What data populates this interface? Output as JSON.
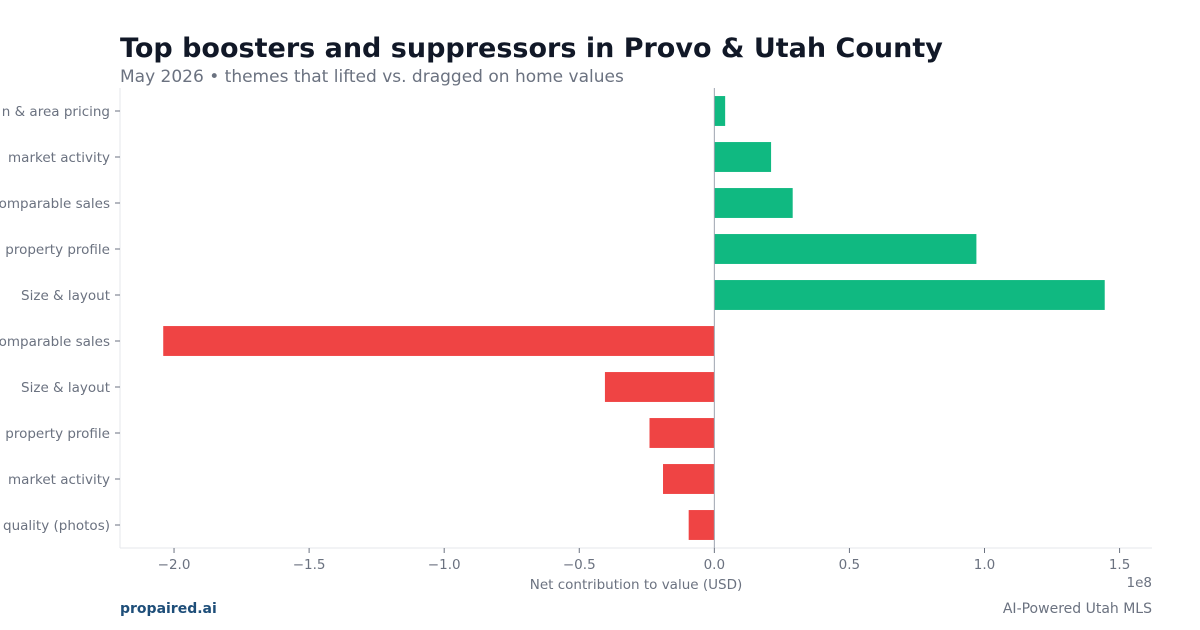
{
  "header": {
    "title": "Top boosters and suppressors in Provo & Utah County",
    "subtitle": "May 2026 • themes that lifted vs. dragged on home values"
  },
  "footer": {
    "brand": "propaired.ai",
    "tagline": "AI-Powered Utah MLS"
  },
  "colors": {
    "booster": "#10b981",
    "suppressor": "#ef4444",
    "text": "#6b7280",
    "title": "#111827",
    "brand": "#1e4e79"
  },
  "chart_data": {
    "type": "bar",
    "orientation": "horizontal",
    "title": "Top boosters and suppressors in Provo & Utah County",
    "subtitle": "May 2026 • themes that lifted vs. dragged on home values",
    "xlabel": "Net contribution to value (USD)",
    "x_offset_label": "1e8",
    "xlim": [
      -2.2,
      1.62
    ],
    "xticks": [
      -2.0,
      -1.5,
      -1.0,
      -0.5,
      0.0,
      0.5,
      1.0,
      1.5
    ],
    "xtick_labels": [
      "−2.0",
      "−1.5",
      "−1.0",
      "−0.5",
      "0.0",
      "0.5",
      "1.0",
      "1.5"
    ],
    "grid": false,
    "categories": [
      "n & area pricing",
      "market activity",
      "omparable sales",
      "property profile",
      "Size & layout",
      "omparable sales",
      "Size & layout",
      "property profile",
      "market activity",
      "quality (photos)"
    ],
    "values": [
      0.04,
      0.21,
      0.29,
      0.97,
      1.445,
      -2.04,
      -0.405,
      -0.24,
      -0.19,
      -0.095
    ]
  }
}
